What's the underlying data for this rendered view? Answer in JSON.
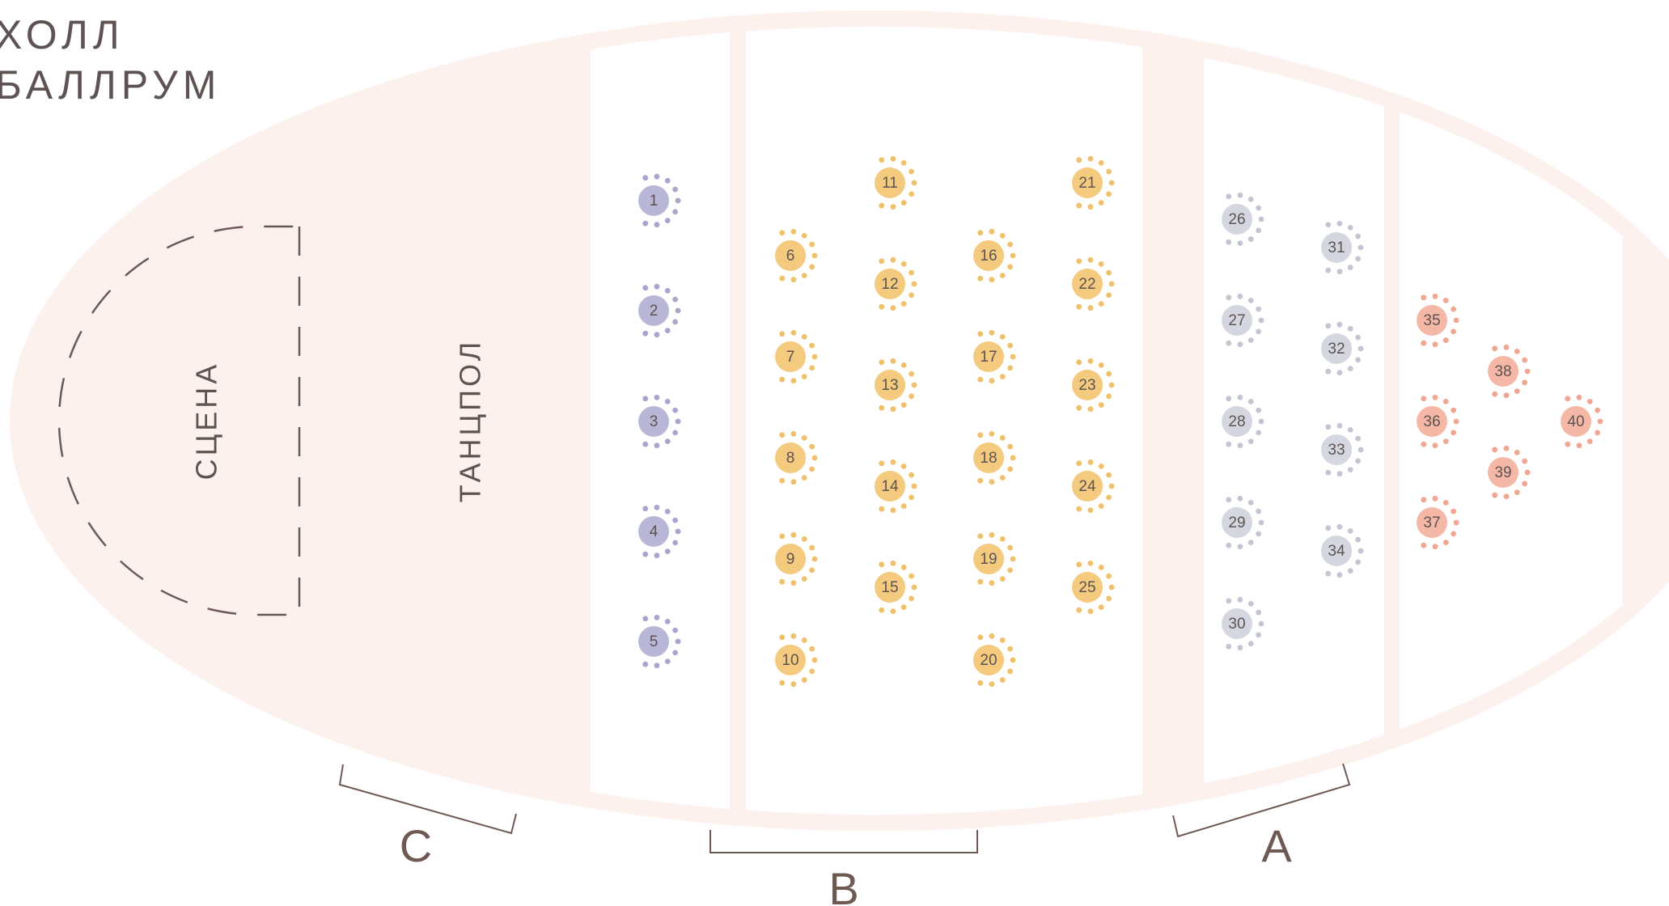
{
  "title": {
    "line1": "ХОЛЛ",
    "line2": "БАЛЛРУМ"
  },
  "zones": {
    "stage": "СЦЕНА",
    "dancefloor": "ТАНЦПОЛ"
  },
  "sections": {
    "a": "A",
    "b": "B",
    "c": "C"
  },
  "colors": {
    "hall": "#fdf1ee",
    "purple": "#b9b7d8",
    "purple_dot": "#a9a6cd",
    "yellow": "#f4ca7e",
    "yellow_dot": "#f0c06a",
    "grey": "#d4d7e0",
    "grey_dot": "#c2c6d2",
    "salmon": "#f5b8a7",
    "salmon_dot": "#f0a690",
    "text": "#5d5352",
    "line": "#6e5a53"
  },
  "tables": [
    {
      "n": "1",
      "g": "purple"
    },
    {
      "n": "2",
      "g": "purple"
    },
    {
      "n": "3",
      "g": "purple"
    },
    {
      "n": "4",
      "g": "purple"
    },
    {
      "n": "5",
      "g": "purple"
    },
    {
      "n": "6",
      "g": "yellow"
    },
    {
      "n": "7",
      "g": "yellow"
    },
    {
      "n": "8",
      "g": "yellow"
    },
    {
      "n": "9",
      "g": "yellow"
    },
    {
      "n": "10",
      "g": "yellow"
    },
    {
      "n": "11",
      "g": "yellow"
    },
    {
      "n": "12",
      "g": "yellow"
    },
    {
      "n": "13",
      "g": "yellow"
    },
    {
      "n": "14",
      "g": "yellow"
    },
    {
      "n": "15",
      "g": "yellow"
    },
    {
      "n": "16",
      "g": "yellow"
    },
    {
      "n": "17",
      "g": "yellow"
    },
    {
      "n": "18",
      "g": "yellow"
    },
    {
      "n": "19",
      "g": "yellow"
    },
    {
      "n": "20",
      "g": "yellow"
    },
    {
      "n": "21",
      "g": "yellow"
    },
    {
      "n": "22",
      "g": "yellow"
    },
    {
      "n": "23",
      "g": "yellow"
    },
    {
      "n": "24",
      "g": "yellow"
    },
    {
      "n": "25",
      "g": "yellow"
    },
    {
      "n": "26",
      "g": "grey"
    },
    {
      "n": "27",
      "g": "grey"
    },
    {
      "n": "28",
      "g": "grey"
    },
    {
      "n": "29",
      "g": "grey"
    },
    {
      "n": "30",
      "g": "grey"
    },
    {
      "n": "31",
      "g": "grey"
    },
    {
      "n": "32",
      "g": "grey"
    },
    {
      "n": "33",
      "g": "grey"
    },
    {
      "n": "34",
      "g": "grey"
    },
    {
      "n": "35",
      "g": "salmon"
    },
    {
      "n": "36",
      "g": "salmon"
    },
    {
      "n": "37",
      "g": "salmon"
    },
    {
      "n": "38",
      "g": "salmon"
    },
    {
      "n": "39",
      "g": "salmon"
    },
    {
      "n": "40",
      "g": "salmon"
    }
  ]
}
